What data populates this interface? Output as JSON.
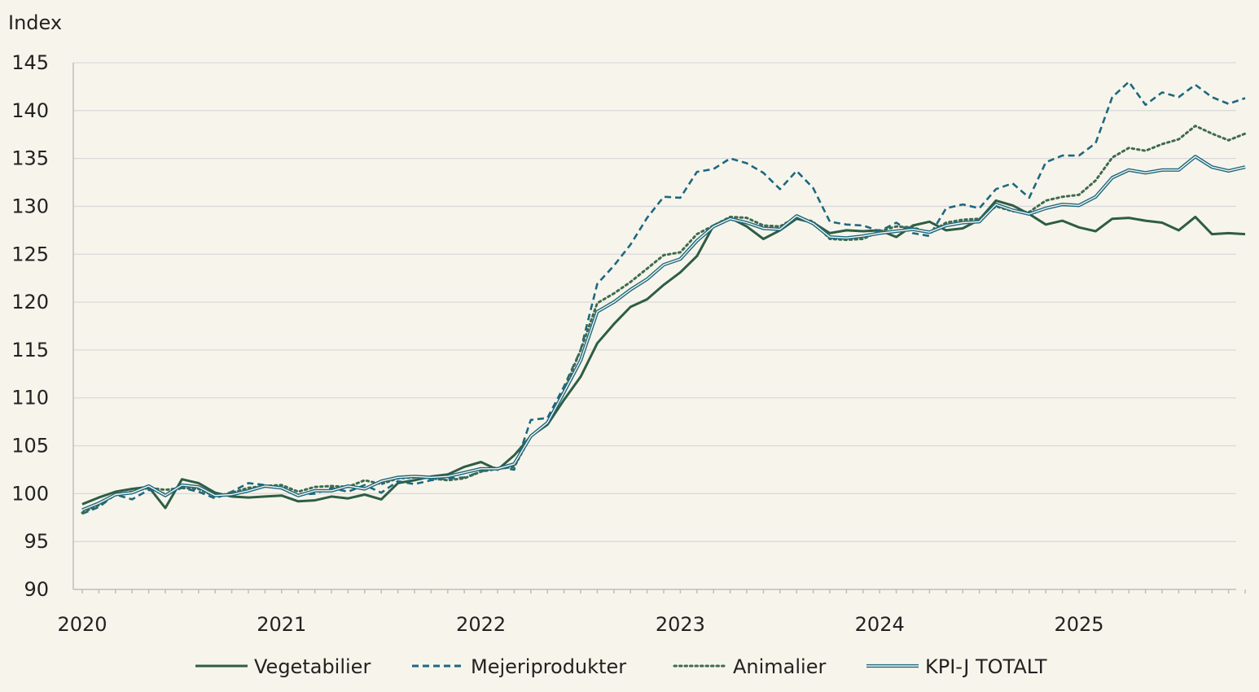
{
  "chart_data": {
    "type": "line",
    "ylabel": "Index",
    "ylim": [
      90,
      145
    ],
    "yticks": [
      "90",
      "95",
      "100",
      "105",
      "110",
      "115",
      "120",
      "125",
      "130",
      "135",
      "140",
      "145"
    ],
    "xticks": [
      "2020",
      "2021",
      "2022",
      "2023",
      "2024",
      "2025"
    ],
    "xlim": [
      2020.0,
      2025.8333
    ],
    "grid": true,
    "legend_position": "bottom",
    "x": [
      2020.0,
      2020.0833,
      2020.1667,
      2020.25,
      2020.3333,
      2020.4167,
      2020.5,
      2020.5833,
      2020.6667,
      2020.75,
      2020.8333,
      2020.9167,
      2021.0,
      2021.0833,
      2021.1667,
      2021.25,
      2021.3333,
      2021.4167,
      2021.5,
      2021.5833,
      2021.6667,
      2021.75,
      2021.8333,
      2021.9167,
      2022.0,
      2022.0833,
      2022.1667,
      2022.25,
      2022.3333,
      2022.4167,
      2022.5,
      2022.5833,
      2022.6667,
      2022.75,
      2022.8333,
      2022.9167,
      2023.0,
      2023.0833,
      2023.1667,
      2023.25,
      2023.3333,
      2023.4167,
      2023.5,
      2023.5833,
      2023.6667,
      2023.75,
      2023.8333,
      2023.9167,
      2024.0,
      2024.0833,
      2024.1667,
      2024.25,
      2024.3333,
      2024.4167,
      2024.5,
      2024.5833,
      2024.6667,
      2024.75,
      2024.8333,
      2024.9167,
      2025.0,
      2025.0833,
      2025.1667,
      2025.25,
      2025.3333,
      2025.4167,
      2025.5,
      2025.5833,
      2025.6667,
      2025.75,
      2025.8333
    ],
    "series": [
      {
        "name": "Vegetabilier",
        "color": "#2e5d45",
        "style": "solid",
        "values": [
          98.9,
          99.6,
          100.2,
          100.5,
          100.7,
          98.5,
          101.5,
          101.1,
          100.1,
          99.7,
          99.6,
          99.7,
          99.8,
          99.2,
          99.3,
          99.7,
          99.5,
          99.9,
          99.4,
          101.1,
          101.4,
          101.8,
          102.0,
          102.8,
          103.3,
          102.5,
          104.0,
          106.0,
          107.2,
          109.8,
          112.2,
          115.7,
          117.7,
          119.5,
          120.3,
          121.8,
          123.1,
          124.8,
          128.0,
          128.8,
          127.9,
          126.6,
          127.5,
          128.7,
          128.3,
          127.2,
          127.5,
          127.4,
          127.5,
          126.8,
          128.0,
          128.4,
          127.5,
          127.7,
          128.6,
          130.6,
          130.1,
          129.2,
          128.1,
          128.5,
          127.8,
          127.4,
          128.7,
          128.8,
          128.5,
          128.3,
          127.5,
          128.9,
          127.1,
          127.2,
          127.1
        ]
      },
      {
        "name": "Mejeriprodukter",
        "color": "#1d6880",
        "style": "dashed",
        "values": [
          97.9,
          98.6,
          99.9,
          99.4,
          100.4,
          100.0,
          100.6,
          100.2,
          99.5,
          100.2,
          101.1,
          100.9,
          100.6,
          99.9,
          100.0,
          100.6,
          100.2,
          100.9,
          100.1,
          101.3,
          101.0,
          101.4,
          101.6,
          101.7,
          102.3,
          102.8,
          102.5,
          107.7,
          107.9,
          111.2,
          115.0,
          121.9,
          123.8,
          126.0,
          128.8,
          131.0,
          130.9,
          133.6,
          133.9,
          135.0,
          134.5,
          133.5,
          131.8,
          133.7,
          131.9,
          128.4,
          128.1,
          128.0,
          127.4,
          128.3,
          127.2,
          126.9,
          129.8,
          130.2,
          129.8,
          131.8,
          132.4,
          130.9,
          134.6,
          135.3,
          135.3,
          136.6,
          141.4,
          143.0,
          140.6,
          141.9,
          141.4,
          142.7,
          141.4,
          140.7,
          141.3
        ]
      },
      {
        "name": "Animalier",
        "color": "#3f6b50",
        "style": "dotted",
        "values": [
          98.0,
          98.8,
          99.9,
          100.2,
          100.6,
          100.4,
          100.6,
          100.5,
          99.7,
          100.1,
          100.6,
          100.8,
          100.9,
          100.2,
          100.7,
          100.8,
          100.7,
          101.4,
          101.0,
          101.6,
          101.7,
          101.6,
          101.4,
          101.6,
          102.3,
          102.6,
          102.8,
          106.0,
          107.4,
          110.8,
          115.0,
          119.9,
          120.9,
          122.1,
          123.5,
          124.9,
          125.2,
          127.1,
          128.0,
          128.9,
          128.8,
          128.0,
          127.9,
          128.9,
          128.4,
          126.6,
          126.5,
          126.6,
          127.4,
          127.9,
          127.8,
          127.2,
          128.3,
          128.6,
          128.7,
          130.0,
          129.5,
          129.4,
          130.6,
          131.0,
          131.2,
          132.7,
          135.1,
          136.1,
          135.8,
          136.5,
          137.0,
          138.4,
          137.6,
          136.9,
          137.6
        ]
      },
      {
        "name": "KPI-J TOTALT",
        "color": "#1d6880",
        "style": "double",
        "values": [
          98.3,
          99.0,
          99.9,
          100.1,
          100.8,
          99.8,
          100.9,
          100.7,
          99.8,
          99.9,
          100.3,
          100.8,
          100.6,
          99.8,
          100.3,
          100.3,
          100.8,
          100.5,
          101.3,
          101.7,
          101.8,
          101.7,
          101.8,
          102.2,
          102.6,
          102.6,
          103.1,
          106.0,
          107.4,
          110.6,
          113.9,
          119.0,
          120.0,
          121.3,
          122.4,
          123.9,
          124.5,
          126.4,
          127.9,
          128.7,
          128.3,
          127.7,
          127.6,
          129.0,
          128.2,
          126.8,
          126.7,
          126.9,
          127.2,
          127.4,
          127.6,
          127.3,
          128.0,
          128.3,
          128.4,
          130.2,
          129.6,
          129.2,
          129.8,
          130.2,
          130.1,
          131.0,
          133.0,
          133.8,
          133.5,
          133.8,
          133.8,
          135.2,
          134.1,
          133.7,
          134.1
        ]
      }
    ]
  }
}
